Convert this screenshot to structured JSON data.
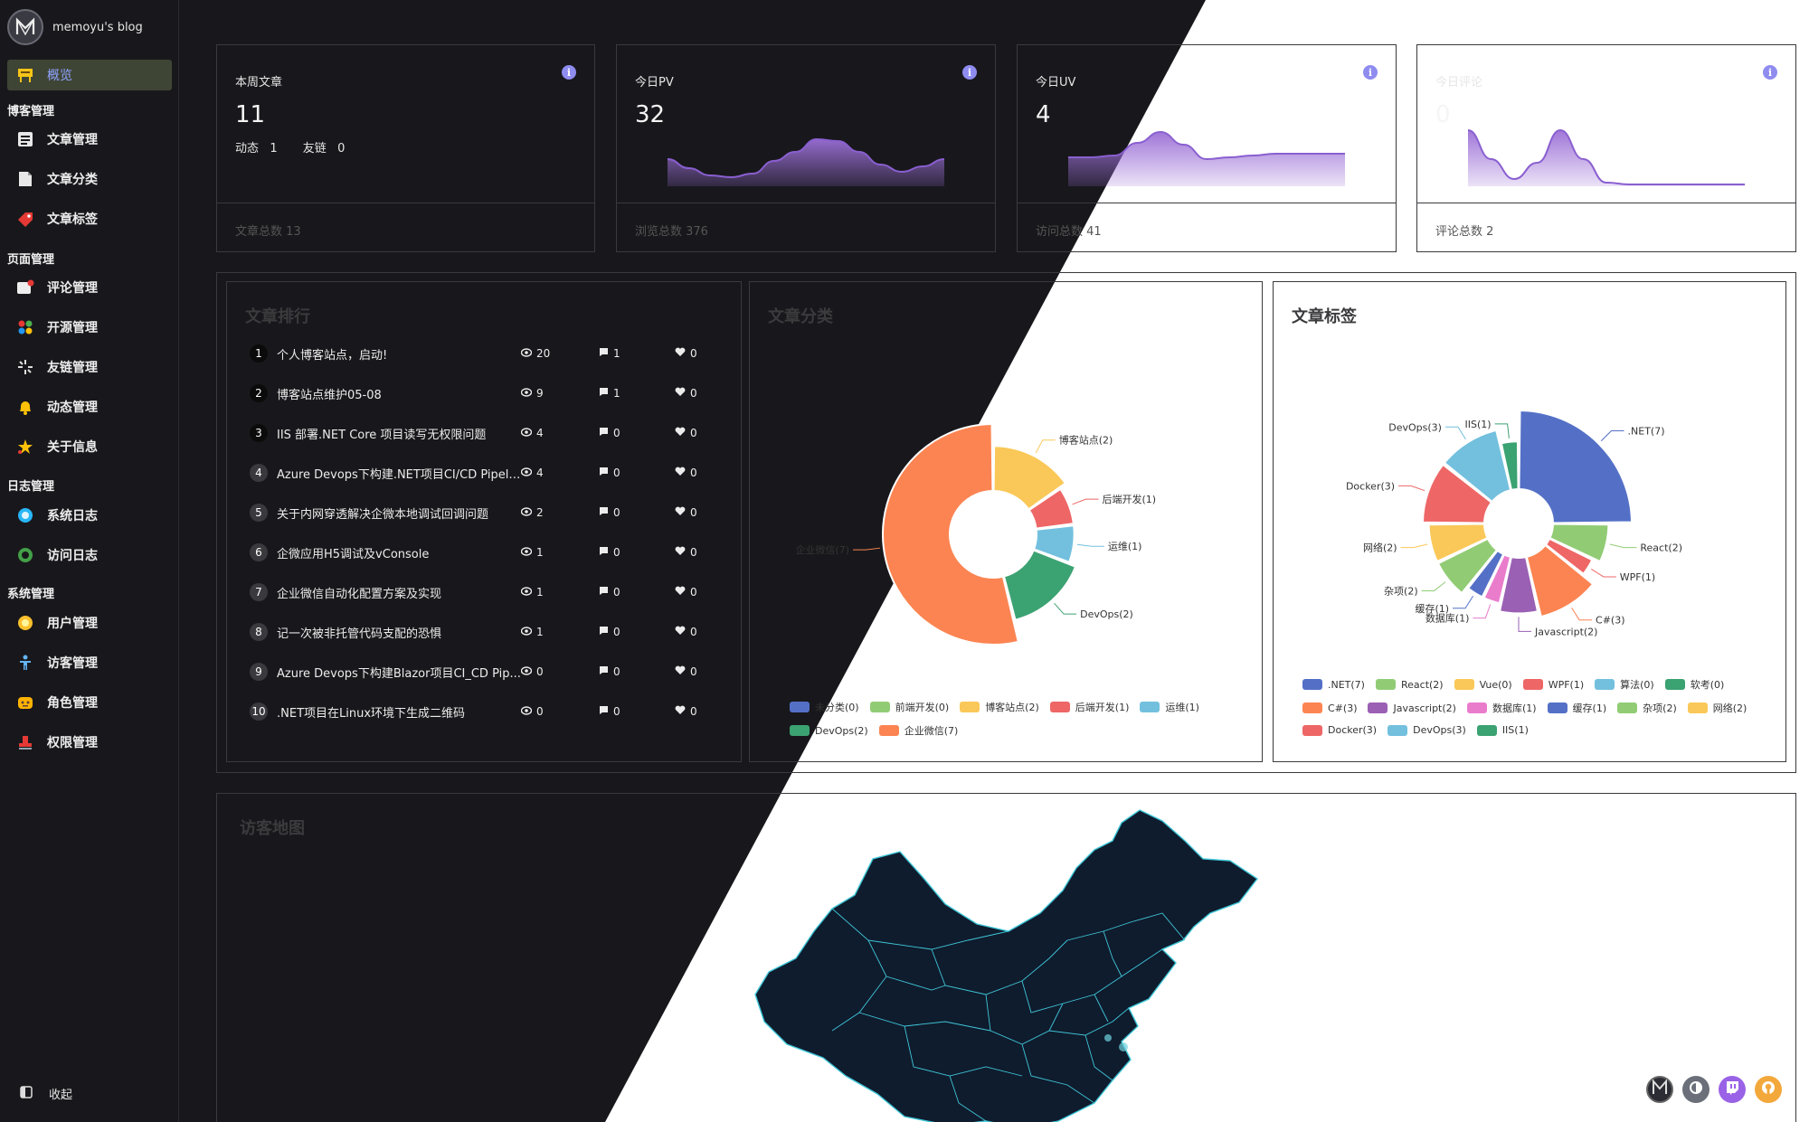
{
  "brand": {
    "title": "memoyu's blog"
  },
  "nav": {
    "overview": "概览",
    "groups": {
      "blog": "博客管理",
      "page": "页面管理",
      "log": "日志管理",
      "system": "系统管理"
    },
    "items": {
      "articles": "文章管理",
      "categories": "文章分类",
      "tags": "文章标签",
      "comments": "评论管理",
      "opensource": "开源管理",
      "friendlinks": "友链管理",
      "moments": "动态管理",
      "about": "关于信息",
      "syslog": "系统日志",
      "accesslog": "访问日志",
      "users": "用户管理",
      "visitors": "访客管理",
      "roles": "角色管理",
      "permissions": "权限管理"
    },
    "collapse": "收起"
  },
  "stats": {
    "week_articles": {
      "title": "本周文章",
      "value": "11",
      "moments_label": "动态",
      "moments_value": "1",
      "links_label": "友链",
      "links_value": "0",
      "footer": "文章总数  13"
    },
    "pv": {
      "title": "今日PV",
      "value": "32",
      "footer": "浏览总数  376"
    },
    "uv": {
      "title": "今日UV",
      "value": "4",
      "footer": "访问总数  41"
    },
    "comments": {
      "title": "今日评论",
      "value": "0",
      "footer": "评论总数  2"
    }
  },
  "ranking": {
    "title": "文章排行",
    "rows": [
      {
        "n": "1",
        "title": "个人博客站点，启动!",
        "views": "20",
        "comments": "1",
        "likes": "0"
      },
      {
        "n": "2",
        "title": "博客站点维护05-08",
        "views": "9",
        "comments": "1",
        "likes": "0"
      },
      {
        "n": "3",
        "title": "IIS 部署.NET Core 项目读写无权限问题",
        "views": "4",
        "comments": "0",
        "likes": "0"
      },
      {
        "n": "4",
        "title": "Azure Devops下构建.NET项目CI/CD Pipeli...",
        "views": "4",
        "comments": "0",
        "likes": "0"
      },
      {
        "n": "5",
        "title": "关于内网穿透解决企微本地调试回调问题",
        "views": "2",
        "comments": "0",
        "likes": "0"
      },
      {
        "n": "6",
        "title": "企微应用H5调试及vConsole",
        "views": "1",
        "comments": "0",
        "likes": "0"
      },
      {
        "n": "7",
        "title": "企业微信自动化配置方案及实现",
        "views": "1",
        "comments": "0",
        "likes": "0"
      },
      {
        "n": "8",
        "title": "记一次被非托管代码支配的恐惧",
        "views": "1",
        "comments": "0",
        "likes": "0"
      },
      {
        "n": "9",
        "title": "Azure Devops下构建Blazor项目CI_CD Pip...",
        "views": "0",
        "comments": "0",
        "likes": "0"
      },
      {
        "n": "10",
        "title": ".NET项目在Linux环境下生成二维码",
        "views": "0",
        "comments": "0",
        "likes": "0"
      }
    ]
  },
  "map": {
    "title": "访客地图"
  },
  "chart_data": [
    {
      "type": "area",
      "title": "今日PV",
      "values": [
        14,
        9,
        5,
        4,
        6,
        13,
        18,
        25,
        24,
        18,
        11,
        7,
        10,
        14
      ]
    },
    {
      "type": "area",
      "title": "今日UV",
      "values": [
        15,
        15,
        16,
        23,
        29,
        22,
        14,
        15,
        16,
        17,
        17,
        17,
        17
      ]
    },
    {
      "type": "area",
      "title": "今日评论",
      "values": [
        30,
        14,
        3,
        12,
        30,
        14,
        1,
        0,
        0,
        0,
        0,
        0,
        0
      ]
    },
    {
      "type": "pie",
      "title": "文章分类",
      "series": [
        {
          "name": "未分类",
          "value": 0,
          "color": "#5470c6"
        },
        {
          "name": "前端开发",
          "value": 0,
          "color": "#91cc75"
        },
        {
          "name": "博客站点",
          "value": 2,
          "color": "#fac858"
        },
        {
          "name": "后端开发",
          "value": 1,
          "color": "#ee6666"
        },
        {
          "name": "运维",
          "value": 1,
          "color": "#73c0de"
        },
        {
          "name": "DevOps",
          "value": 2,
          "color": "#3ba272"
        },
        {
          "name": "企业微信",
          "value": 7,
          "color": "#fc8452"
        }
      ],
      "slice_labels": [
        "博客站点(2)",
        "后端开发(1)",
        "运维(1)",
        "DevOps(2)",
        "企业微信(7)"
      ],
      "legend": [
        "未分类(0)",
        "前端开发(0)",
        "博客站点(2)",
        "后端开发(1)",
        "运维(1)",
        "DevOps(2)",
        "企业微信(7)"
      ]
    },
    {
      "type": "pie",
      "title": "文章标签",
      "series": [
        {
          "name": ".NET",
          "value": 7,
          "color": "#5470c6"
        },
        {
          "name": "React",
          "value": 2,
          "color": "#91cc75"
        },
        {
          "name": "Vue",
          "value": 0,
          "color": "#fac858"
        },
        {
          "name": "WPF",
          "value": 1,
          "color": "#ee6666"
        },
        {
          "name": "算法",
          "value": 0,
          "color": "#73c0de"
        },
        {
          "name": "软考",
          "value": 0,
          "color": "#3ba272"
        },
        {
          "name": "C#",
          "value": 3,
          "color": "#fc8452"
        },
        {
          "name": "Javascript",
          "value": 2,
          "color": "#9a60b4"
        },
        {
          "name": "数据库",
          "value": 1,
          "color": "#ea7ccc"
        },
        {
          "name": "缓存",
          "value": 1,
          "color": "#5470c6"
        },
        {
          "name": "杂项",
          "value": 2,
          "color": "#91cc75"
        },
        {
          "name": "网络",
          "value": 2,
          "color": "#fac858"
        },
        {
          "name": "Docker",
          "value": 3,
          "color": "#ee6666"
        },
        {
          "name": "DevOps",
          "value": 3,
          "color": "#73c0de"
        },
        {
          "name": "IIS",
          "value": 1,
          "color": "#3ba272"
        }
      ],
      "slice_labels": [
        ".NET(7)",
        "React(2)",
        "WPF(1)",
        "C#(3)",
        "Javascript(2)",
        "数据库(1)",
        "缓存(1)",
        "杂项(2)",
        "网络(2)",
        "Docker(3)",
        "DevOps(3)",
        "IIS(1)"
      ],
      "legend": [
        ".NET(7)",
        "React(2)",
        "Vue(0)",
        "WPF(1)",
        "算法(0)",
        "软考(0)",
        "C#(3)",
        "Javascript(2)",
        "数据库(1)",
        "缓存(1)",
        "杂项(2)",
        "网络(2)",
        "Docker(3)",
        "DevOps(3)",
        "IIS(1)"
      ]
    }
  ],
  "colors": {
    "dark_bg": "#18181c",
    "accent": "#8f8cf0",
    "spark_fill": "#9b6fd6",
    "map_fill": "#0f1c2e",
    "map_stroke": "#3fc7d8"
  },
  "float_buttons": [
    "logo-icon",
    "theme-toggle-icon",
    "twitch-icon",
    "github-icon"
  ]
}
